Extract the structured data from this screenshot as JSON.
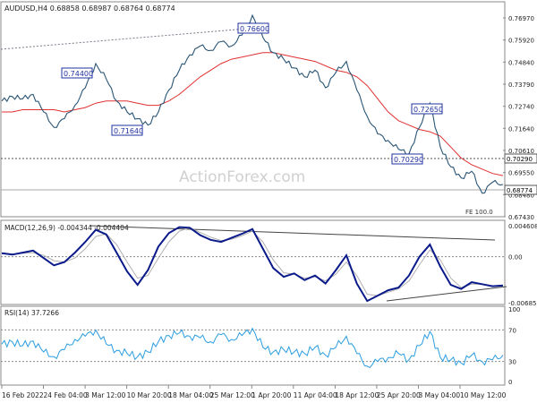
{
  "chart_data": [
    {
      "panel": "price",
      "type": "line",
      "title": "AUDUSD,H4  0.68858 0.68987 0.68764 0.68774",
      "ylim": [
        0.6743,
        0.7697
      ],
      "ticks": [
        "0.76970",
        "0.75920",
        "0.74840",
        "0.73790",
        "0.72740",
        "0.71640",
        "0.70610",
        "0.69550",
        "0.68480",
        "0.67430"
      ],
      "last_price": "0.68774",
      "hline_label": "0.70290",
      "footer": "FE 100.0",
      "watermark": "ActionForex.com",
      "annotations": [
        "0.74400",
        "0.76600",
        "0.71640",
        "0.72650",
        "0.70290"
      ],
      "series": [
        {
          "name": "price",
          "values": [
            0.727,
            0.729,
            0.728,
            0.73,
            0.722,
            0.715,
            0.719,
            0.725,
            0.733,
            0.744,
            0.737,
            0.727,
            0.722,
            0.719,
            0.716,
            0.722,
            0.732,
            0.741,
            0.748,
            0.752,
            0.75,
            0.754,
            0.752,
            0.757,
            0.766,
            0.756,
            0.749,
            0.746,
            0.742,
            0.738,
            0.741,
            0.733,
            0.74,
            0.745,
            0.732,
            0.72,
            0.712,
            0.709,
            0.705,
            0.703,
            0.715,
            0.726,
            0.706,
            0.697,
            0.692,
            0.695,
            0.685,
            0.69,
            0.689
          ]
        },
        {
          "name": "ma",
          "values": [
            0.722,
            0.722,
            0.723,
            0.723,
            0.723,
            0.723,
            0.722,
            0.723,
            0.724,
            0.726,
            0.727,
            0.727,
            0.727,
            0.726,
            0.725,
            0.725,
            0.727,
            0.73,
            0.734,
            0.738,
            0.741,
            0.744,
            0.746,
            0.747,
            0.748,
            0.749,
            0.749,
            0.748,
            0.747,
            0.746,
            0.745,
            0.743,
            0.741,
            0.74,
            0.738,
            0.734,
            0.728,
            0.722,
            0.718,
            0.716,
            0.714,
            0.713,
            0.711,
            0.706,
            0.701,
            0.698,
            0.696,
            0.694,
            0.693
          ]
        }
      ]
    },
    {
      "panel": "macd",
      "type": "line",
      "title": "MACD(12,26,9) -0.004344 -0.004404",
      "ylim": [
        -0.006853,
        0.004608
      ],
      "ticks": [
        "0.004608",
        "0.00",
        "-0.006853"
      ],
      "series": [
        {
          "name": "macd",
          "values": [
            0.0005,
            0.0003,
            0.0006,
            0.0009,
            -0.0002,
            -0.0013,
            -0.0008,
            0.0006,
            0.0022,
            0.004,
            0.0033,
            0.0006,
            -0.0022,
            -0.0042,
            -0.002,
            0.0015,
            0.0035,
            0.0044,
            0.0043,
            0.0032,
            0.0025,
            0.0022,
            0.0028,
            0.0034,
            0.0041,
            0.0012,
            -0.0017,
            -0.003,
            -0.0025,
            -0.0035,
            -0.0028,
            -0.004,
            -0.002,
            0.0002,
            -0.004,
            -0.0066,
            -0.0058,
            -0.005,
            -0.0046,
            -0.0028,
            0.0,
            0.0018,
            -0.0015,
            -0.0042,
            -0.0048,
            -0.0038,
            -0.0041,
            -0.0044,
            -0.0043
          ]
        },
        {
          "name": "signal",
          "values": [
            0.0005,
            0.0004,
            0.0005,
            0.0006,
            0.0002,
            -0.0006,
            -0.0008,
            -0.0002,
            0.0012,
            0.003,
            0.0034,
            0.0018,
            -0.0008,
            -0.0032,
            -0.0028,
            -0.0002,
            0.0022,
            0.0038,
            0.0043,
            0.0036,
            0.0029,
            0.0024,
            0.0026,
            0.0031,
            0.0038,
            0.0022,
            -0.0005,
            -0.0024,
            -0.0026,
            -0.0032,
            -0.003,
            -0.0036,
            -0.0026,
            -0.0008,
            -0.0028,
            -0.0056,
            -0.0058,
            -0.0053,
            -0.0048,
            -0.0036,
            -0.0012,
            0.001,
            -0.0005,
            -0.0032,
            -0.0046,
            -0.0041,
            -0.0041,
            -0.0044,
            -0.0044
          ]
        }
      ]
    },
    {
      "panel": "rsi",
      "type": "line",
      "title": "RSI(14) 37.7266",
      "ylim": [
        0,
        100
      ],
      "ticks": [
        "100",
        "70",
        "30",
        "0"
      ],
      "levels": [
        70,
        30
      ],
      "series": [
        {
          "name": "rsi",
          "values": [
            52,
            55,
            50,
            56,
            42,
            36,
            45,
            58,
            62,
            70,
            52,
            44,
            40,
            36,
            42,
            55,
            63,
            66,
            62,
            60,
            55,
            64,
            58,
            63,
            72,
            48,
            42,
            45,
            42,
            40,
            48,
            38,
            48,
            62,
            40,
            24,
            30,
            35,
            40,
            32,
            50,
            68,
            35,
            32,
            28,
            38,
            30,
            32,
            38
          ]
        }
      ]
    }
  ],
  "xaxis": [
    "16 Feb 2022",
    "24 Feb 04:00",
    "3 Mar 12:00",
    "10 Mar 20:00",
    "18 Mar 04:00",
    "25 Mar 12:00",
    "1 Apr 20:00",
    "11 Apr 04:00",
    "18 Apr 12:00",
    "25 Apr 20:00",
    "3 May 04:00",
    "10 May 12:00"
  ],
  "colors": {
    "price": "#2a5575",
    "ma": "#e03030",
    "macd": "#0a1a8a",
    "signal": "#b0b0b0",
    "rsi": "#2a9de0",
    "grid": "#8a8a8a"
  }
}
